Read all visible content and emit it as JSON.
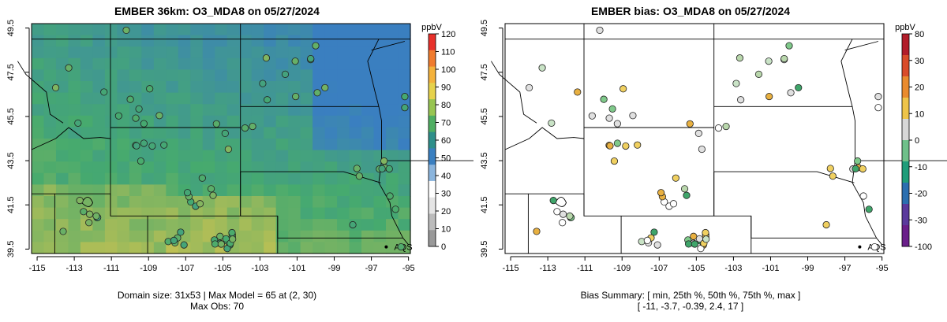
{
  "left": {
    "title": "EMBER 36km: O3_MDA8 on 05/27/2024",
    "caption_line1": "Domain size: 31x53 | Max Model = 65 at (2, 30)",
    "caption_line2": "Max Obs: 70",
    "colorbar": {
      "unit_label": "ppbV",
      "ticks": [
        "120",
        "110",
        "100",
        "90",
        "80",
        "70",
        "60",
        "50",
        "40",
        "30",
        "20",
        "10",
        "0"
      ]
    }
  },
  "right": {
    "title": "EMBER bias: O3_MDA8 on 05/27/2024",
    "caption_line1": "Bias Summary: [ min, 25th %, 50th %, 75th %, max ]",
    "caption_line2": "[ -11,   -3.7,   -0.39,   2.4,   17 ]",
    "colorbar": {
      "unit_label": "ppbV",
      "ticks": [
        "80",
        "30",
        "20",
        "10",
        "0",
        "-10",
        "-20",
        "-30",
        "-100"
      ]
    }
  },
  "map": {
    "x_ticks": [
      "-115",
      "-113",
      "-111",
      "-109",
      "-107",
      "-105",
      "-103",
      "-101",
      "-99",
      "-97",
      "-95"
    ],
    "y_ticks": [
      "49.5",
      "47.5",
      "45.5",
      "43.5",
      "41.5",
      "39.5"
    ],
    "city_label": "AQS",
    "colors": {
      "low": "#3a7fc0",
      "mid": "#3cab5a",
      "high": "#e8c84a",
      "background": "#ffffff"
    }
  },
  "chart_data": [
    {
      "type": "heatmap",
      "title": "EMBER 36km: O3_MDA8 on 05/27/2024",
      "x_range": [
        -115.3,
        -94.9
      ],
      "y_range": [
        39.3,
        49.7
      ],
      "colorbar_range": [
        0,
        120
      ],
      "colorbar_unit": "ppbV",
      "domain_size": "31x53",
      "max_model": 65,
      "max_obs": 70
    },
    {
      "type": "scatter",
      "title": "EMBER bias: O3_MDA8 on 05/27/2024",
      "x_range": [
        -115.3,
        -94.9
      ],
      "y_range": [
        39.3,
        49.7
      ],
      "colorbar_unit": "ppbV",
      "bias_summary": {
        "min": -11,
        "p25": -3.7,
        "p50": -0.39,
        "p75": 2.4,
        "max": 17
      }
    }
  ]
}
